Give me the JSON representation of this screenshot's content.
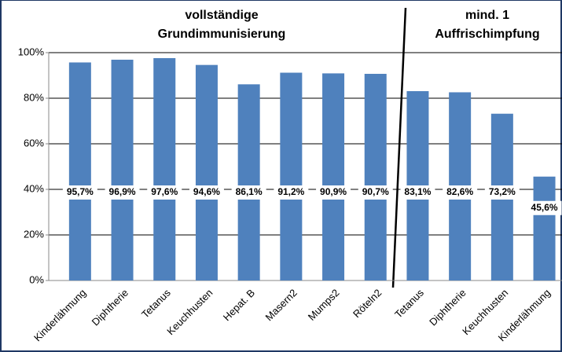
{
  "chart_data": {
    "type": "bar",
    "categories": [
      "Kinderlähmung",
      "Diphtherie",
      "Tetanus",
      "Keuchhusten",
      "Hepat. B",
      "Masern2",
      "Mumps2",
      "Röteln2",
      "Tetanus",
      "Diphtherie",
      "Keuchhusten",
      "Kinderlähmung"
    ],
    "values": [
      95.7,
      96.9,
      97.6,
      94.6,
      86.1,
      91.2,
      90.9,
      90.7,
      83.1,
      82.6,
      73.2,
      45.6
    ],
    "value_labels": [
      "95,7%",
      "96,9%",
      "97,6%",
      "94,6%",
      "86,1%",
      "91,2%",
      "90,9%",
      "90,7%",
      "83,1%",
      "82,6%",
      "73,2%",
      "45,6%"
    ],
    "color": "#4f81bd",
    "ylim": [
      0,
      100
    ],
    "yticks": [
      {
        "value": 0,
        "label": "0%"
      },
      {
        "value": 20,
        "label": "20%"
      },
      {
        "value": 40,
        "label": "40%"
      },
      {
        "value": 60,
        "label": "60%"
      },
      {
        "value": 80,
        "label": "80%"
      },
      {
        "value": 100,
        "label": "100%"
      }
    ],
    "grid": true,
    "annotations": [
      [
        "vollständige",
        "Grundimmunisierung"
      ],
      [
        "mind. 1",
        "Auffrischimpfung"
      ]
    ]
  }
}
